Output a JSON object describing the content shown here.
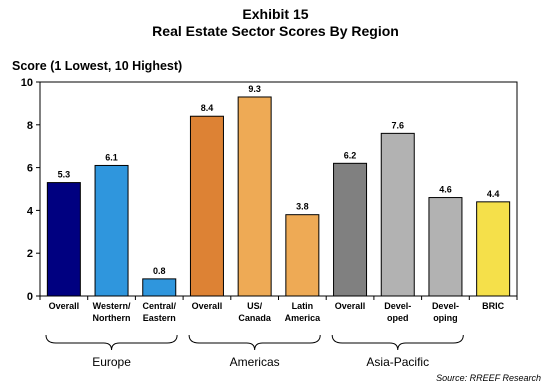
{
  "exhibit": "Exhibit 15",
  "title": "Real Estate Sector Scores By Region",
  "source": "Source: RREEF Research",
  "chart_data": {
    "type": "bar",
    "title": "Real Estate Sector Scores By Region",
    "ylabel": "Score (1 Lowest, 10 Highest)",
    "xlabel": "",
    "ylim": [
      0,
      10
    ],
    "yticks": [
      "0",
      "2",
      "4",
      "6",
      "8",
      "10"
    ],
    "grid": false,
    "bars": [
      {
        "label": [
          "Overall"
        ],
        "value": 5.3,
        "value_label": "5.3",
        "color": "#000080"
      },
      {
        "label": [
          "Western/",
          "Northern"
        ],
        "value": 6.1,
        "value_label": "6.1",
        "color": "#2f96dd"
      },
      {
        "label": [
          "Central/",
          "Eastern"
        ],
        "value": 0.8,
        "value_label": "0.8",
        "color": "#2f96dd"
      },
      {
        "label": [
          "Overall"
        ],
        "value": 8.4,
        "value_label": "8.4",
        "color": "#dd8234"
      },
      {
        "label": [
          "US/",
          "Canada"
        ],
        "value": 9.3,
        "value_label": "9.3",
        "color": "#eeaa55"
      },
      {
        "label": [
          "Latin",
          "America"
        ],
        "value": 3.8,
        "value_label": "3.8",
        "color": "#eeaa55"
      },
      {
        "label": [
          "Overall"
        ],
        "value": 6.2,
        "value_label": "6.2",
        "color": "#808080"
      },
      {
        "label": [
          "Devel-",
          "oped"
        ],
        "value": 7.6,
        "value_label": "7.6",
        "color": "#b2b2b2"
      },
      {
        "label": [
          "Devel-",
          "oping"
        ],
        "value": 4.6,
        "value_label": "4.6",
        "color": "#b2b2b2"
      },
      {
        "label": [
          "BRIC"
        ],
        "value": 4.4,
        "value_label": "4.4",
        "color": "#f5e04a"
      }
    ],
    "groups": [
      {
        "name": "Europe",
        "first": 0,
        "last": 2
      },
      {
        "name": "Americas",
        "first": 3,
        "last": 5
      },
      {
        "name": "Asia-Pacific",
        "first": 6,
        "last": 8
      }
    ]
  }
}
